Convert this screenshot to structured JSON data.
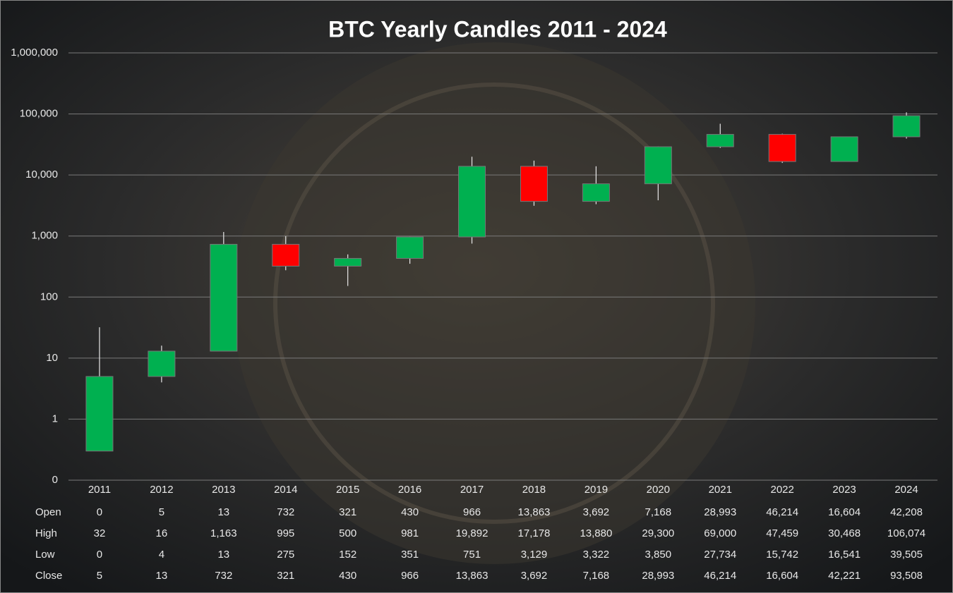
{
  "chart_data": {
    "type": "candlestick",
    "title": "BTC Yearly Candles 2011 - 2024",
    "categories": [
      "2011",
      "2012",
      "2013",
      "2014",
      "2015",
      "2016",
      "2017",
      "2018",
      "2019",
      "2020",
      "2021",
      "2022",
      "2023",
      "2024"
    ],
    "series": [
      {
        "name": "Open",
        "values": [
          0.3,
          5,
          13,
          732,
          321,
          430,
          966,
          13863,
          3692,
          7168,
          28993,
          46214,
          16604,
          42208
        ],
        "value_labels": [
          "0",
          "5",
          "13",
          "732",
          "321",
          "430",
          "966",
          "13,863",
          "3,692",
          "7,168",
          "28,993",
          "46,214",
          "16,604",
          "42,208"
        ]
      },
      {
        "name": "High",
        "values": [
          32,
          16,
          1163,
          995,
          500,
          981,
          19892,
          17178,
          13880,
          29300,
          69000,
          47459,
          30468,
          106074
        ],
        "value_labels": [
          "32",
          "16",
          "1,163",
          "995",
          "500",
          "981",
          "19,892",
          "17,178",
          "13,880",
          "29,300",
          "69,000",
          "47,459",
          "30,468",
          "106,074"
        ]
      },
      {
        "name": "Low",
        "values": [
          0.3,
          4,
          13,
          275,
          152,
          351,
          751,
          3129,
          3322,
          3850,
          27734,
          15742,
          16541,
          39505
        ],
        "value_labels": [
          "0",
          "4",
          "13",
          "275",
          "152",
          "351",
          "751",
          "3,129",
          "3,322",
          "3,850",
          "27,734",
          "15,742",
          "16,541",
          "39,505"
        ]
      },
      {
        "name": "Close",
        "values": [
          5,
          13,
          732,
          321,
          430,
          966,
          13863,
          3692,
          7168,
          28993,
          46214,
          16604,
          42221,
          93508
        ],
        "value_labels": [
          "5",
          "13",
          "732",
          "321",
          "430",
          "966",
          "13,863",
          "3,692",
          "7,168",
          "28,993",
          "46,214",
          "16,604",
          "42,221",
          "93,508"
        ]
      }
    ],
    "up_color": "#00b050",
    "down_color": "#ff0000",
    "log_y": true,
    "grid": true,
    "ylim": [
      0.1,
      1000000
    ],
    "yticks": [
      {
        "value": 0.1,
        "label": "0"
      },
      1,
      10,
      100,
      {
        "value": 1000,
        "label": "1,000"
      },
      {
        "value": 10000,
        "label": "10,000"
      },
      {
        "value": 100000,
        "label": "100,000"
      },
      {
        "value": 1000000,
        "label": "1,000,000"
      }
    ]
  }
}
